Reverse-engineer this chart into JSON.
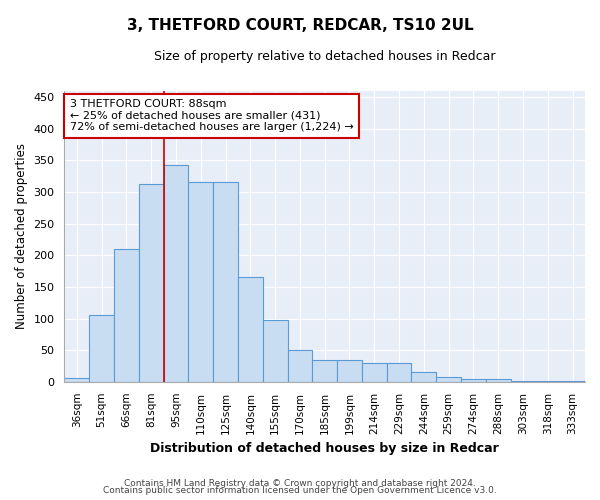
{
  "title": "3, THETFORD COURT, REDCAR, TS10 2UL",
  "subtitle": "Size of property relative to detached houses in Redcar",
  "xlabel": "Distribution of detached houses by size in Redcar",
  "ylabel": "Number of detached properties",
  "categories": [
    "36sqm",
    "51sqm",
    "66sqm",
    "81sqm",
    "95sqm",
    "110sqm",
    "125sqm",
    "140sqm",
    "155sqm",
    "170sqm",
    "185sqm",
    "199sqm",
    "214sqm",
    "229sqm",
    "244sqm",
    "259sqm",
    "274sqm",
    "288sqm",
    "303sqm",
    "318sqm",
    "333sqm"
  ],
  "values": [
    6,
    105,
    210,
    313,
    343,
    316,
    316,
    165,
    97,
    50,
    35,
    35,
    29,
    29,
    15,
    8,
    4,
    5,
    2,
    1,
    1
  ],
  "bar_color": "#c9ddf2",
  "bar_edge_color": "#5b9bd5",
  "plot_bg_color": "#e8eef8",
  "fig_bg_color": "#ffffff",
  "grid_color": "#ffffff",
  "annotation_text": "3 THETFORD COURT: 88sqm\n← 25% of detached houses are smaller (431)\n72% of semi-detached houses are larger (1,224) →",
  "annotation_box_facecolor": "#ffffff",
  "annotation_box_edgecolor": "#cc0000",
  "property_line_x": 3.5,
  "ylim": [
    0,
    460
  ],
  "yticks": [
    0,
    50,
    100,
    150,
    200,
    250,
    300,
    350,
    400,
    450
  ],
  "footer1": "Contains HM Land Registry data © Crown copyright and database right 2024.",
  "footer2": "Contains public sector information licensed under the Open Government Licence v3.0."
}
